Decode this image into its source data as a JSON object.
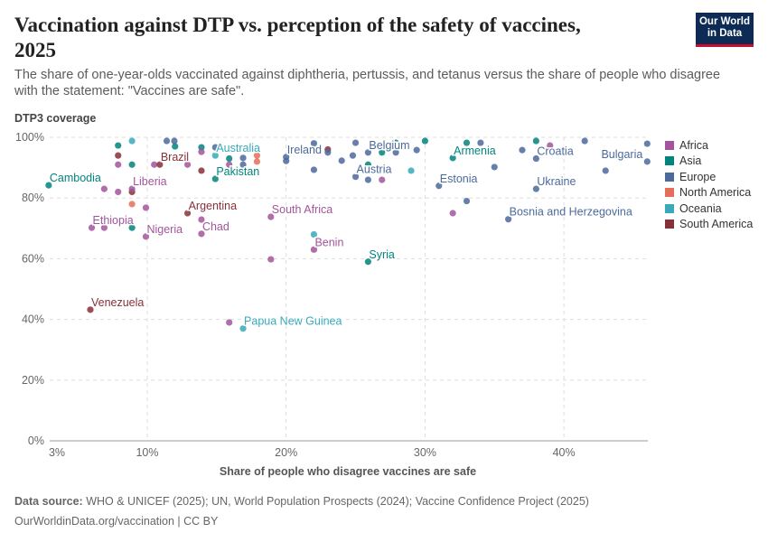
{
  "header": {
    "title": "Vaccination against DTP vs. perception of the safety of vaccines, 2025",
    "subtitle": "The share of one-year-olds vaccinated against diphtheria, pertussis, and tetanus versus the share of people who disagree with the statement: \"Vaccines are safe\".",
    "logo": "Our World in Data"
  },
  "footer": {
    "source_label": "Data source:",
    "source": "WHO & UNICEF (2025); UN, World Population Prospects (2024); Vaccine Confidence Project (2025)",
    "link": "OurWorldinData.org/vaccination | CC BY"
  },
  "chart_data": {
    "type": "scatter",
    "title": "Vaccination against DTP vs. perception of the safety of vaccines, 2025",
    "xlabel": "Share of people who disagree vaccines are safe",
    "ylabel": "DTP3 coverage",
    "xlim": [
      2.5,
      46
    ],
    "ylim": [
      0,
      100
    ],
    "x_scale": "log",
    "x_ticks": [
      "3%",
      "10%",
      "20%",
      "30%",
      "40%"
    ],
    "y_ticks": [
      "0%",
      "20%",
      "40%",
      "60%",
      "80%",
      "100%"
    ],
    "grid": true,
    "legend_position": "right",
    "regions": [
      {
        "name": "Africa",
        "color": "#a2559c"
      },
      {
        "name": "Asia",
        "color": "#00847e"
      },
      {
        "name": "Europe",
        "color": "#4c6a9c"
      },
      {
        "name": "North America",
        "color": "#e56e5a"
      },
      {
        "name": "Oceania",
        "color": "#38aaba"
      },
      {
        "name": "South America",
        "color": "#883039"
      }
    ],
    "points": [
      {
        "x": 2.9,
        "y": 84.2,
        "r": "Asia",
        "label": "Cambodia"
      },
      {
        "x": 6.0,
        "y": 70.2,
        "r": "Africa",
        "label": "Ethiopia"
      },
      {
        "x": 6.9,
        "y": 70.2,
        "r": "Africa"
      },
      {
        "x": 6.9,
        "y": 83,
        "r": "Africa"
      },
      {
        "x": 7.9,
        "y": 82,
        "r": "Africa"
      },
      {
        "x": 8.9,
        "y": 82,
        "r": "South America"
      },
      {
        "x": 8.9,
        "y": 83,
        "r": "Africa",
        "label": "Liberia"
      },
      {
        "x": 8.9,
        "y": 78,
        "r": "North America"
      },
      {
        "x": 8.9,
        "y": 70.2,
        "r": "Asia"
      },
      {
        "x": 9.9,
        "y": 76.8,
        "r": "Africa"
      },
      {
        "x": 9.9,
        "y": 67.3,
        "r": "Africa",
        "label": "Nigeria"
      },
      {
        "x": 5.9,
        "y": 43.2,
        "r": "South America",
        "label": "Venezuela"
      },
      {
        "x": 7.9,
        "y": 97.3,
        "r": "Asia"
      },
      {
        "x": 7.9,
        "y": 94,
        "r": "South America"
      },
      {
        "x": 7.9,
        "y": 91,
        "r": "Africa"
      },
      {
        "x": 8.9,
        "y": 98.8,
        "r": "Oceania"
      },
      {
        "x": 8.9,
        "y": 91,
        "r": "Asia"
      },
      {
        "x": 10.5,
        "y": 91,
        "r": "Africa"
      },
      {
        "x": 10.9,
        "y": 91,
        "r": "South America",
        "label": "Brazil"
      },
      {
        "x": 11.4,
        "y": 98.8,
        "r": "Europe"
      },
      {
        "x": 11.95,
        "y": 98.8,
        "r": "Europe"
      },
      {
        "x": 12,
        "y": 97,
        "r": "Asia"
      },
      {
        "x": 12.9,
        "y": 91,
        "r": "Africa"
      },
      {
        "x": 13.9,
        "y": 96.7,
        "r": "Asia"
      },
      {
        "x": 13.9,
        "y": 95.2,
        "r": "Africa"
      },
      {
        "x": 13.9,
        "y": 89,
        "r": "South America"
      },
      {
        "x": 14.9,
        "y": 96.7,
        "r": "Europe"
      },
      {
        "x": 14.9,
        "y": 94,
        "r": "Oceania",
        "label": "Australia"
      },
      {
        "x": 15.9,
        "y": 93,
        "r": "Asia"
      },
      {
        "x": 15.9,
        "y": 91,
        "r": "Africa"
      },
      {
        "x": 16.9,
        "y": 93.2,
        "r": "Europe"
      },
      {
        "x": 16.9,
        "y": 91,
        "r": "Europe"
      },
      {
        "x": 17.9,
        "y": 94,
        "r": "North America"
      },
      {
        "x": 17.9,
        "y": 92,
        "r": "North America"
      },
      {
        "x": 14.9,
        "y": 86.3,
        "r": "Asia",
        "label": "Pakistan"
      },
      {
        "x": 12.9,
        "y": 75,
        "r": "South America",
        "label": "Argentina"
      },
      {
        "x": 13.9,
        "y": 72.9,
        "r": "Africa"
      },
      {
        "x": 13.9,
        "y": 68.2,
        "r": "Africa",
        "label": "Chad"
      },
      {
        "x": 18.9,
        "y": 73.8,
        "r": "Africa",
        "label": "South Africa"
      },
      {
        "x": 18.9,
        "y": 59.8,
        "r": "Africa"
      },
      {
        "x": 15.9,
        "y": 39,
        "r": "Africa"
      },
      {
        "x": 16.9,
        "y": 37,
        "r": "Oceania",
        "label": "Papua New Guinea"
      },
      {
        "x": 20,
        "y": 93.5,
        "r": "Europe",
        "label": "Ireland"
      },
      {
        "x": 20,
        "y": 92.2,
        "r": "Europe"
      },
      {
        "x": 22,
        "y": 98,
        "r": "Europe"
      },
      {
        "x": 23,
        "y": 96,
        "r": "South America"
      },
      {
        "x": 23,
        "y": 95,
        "r": "Europe"
      },
      {
        "x": 22,
        "y": 89.3,
        "r": "Europe"
      },
      {
        "x": 22,
        "y": 68,
        "r": "Oceania"
      },
      {
        "x": 22,
        "y": 63,
        "r": "Africa",
        "label": "Benin"
      },
      {
        "x": 24,
        "y": 92.3,
        "r": "Europe"
      },
      {
        "x": 24.8,
        "y": 94,
        "r": "Europe"
      },
      {
        "x": 25,
        "y": 98.2,
        "r": "Europe"
      },
      {
        "x": 25.9,
        "y": 95,
        "r": "Europe",
        "label": "Belgium"
      },
      {
        "x": 26.9,
        "y": 95,
        "r": "Asia"
      },
      {
        "x": 27.9,
        "y": 95,
        "r": "Europe"
      },
      {
        "x": 27.9,
        "y": 98.2,
        "r": "Asia"
      },
      {
        "x": 25.9,
        "y": 91,
        "r": "Asia"
      },
      {
        "x": 25,
        "y": 87,
        "r": "Europe",
        "label": "Austria"
      },
      {
        "x": 25.9,
        "y": 86,
        "r": "Europe"
      },
      {
        "x": 26.9,
        "y": 86,
        "r": "Africa"
      },
      {
        "x": 29.4,
        "y": 95.8,
        "r": "Europe"
      },
      {
        "x": 30,
        "y": 98.8,
        "r": "Asia"
      },
      {
        "x": 29,
        "y": 89,
        "r": "Oceania"
      },
      {
        "x": 31,
        "y": 84,
        "r": "Europe",
        "label": "Estonia"
      },
      {
        "x": 32,
        "y": 93.2,
        "r": "Asia",
        "label": "Armenia"
      },
      {
        "x": 33,
        "y": 98.2,
        "r": "Asia"
      },
      {
        "x": 34,
        "y": 98.2,
        "r": "Europe"
      },
      {
        "x": 35,
        "y": 90.2,
        "r": "Europe"
      },
      {
        "x": 33,
        "y": 79,
        "r": "Europe"
      },
      {
        "x": 32,
        "y": 75,
        "r": "Africa"
      },
      {
        "x": 36,
        "y": 73,
        "r": "Europe",
        "label": "Bosnia and Herzegovina"
      },
      {
        "x": 37,
        "y": 95.8,
        "r": "Europe"
      },
      {
        "x": 38,
        "y": 98.8,
        "r": "Asia"
      },
      {
        "x": 39,
        "y": 97.3,
        "r": "Africa"
      },
      {
        "x": 38,
        "y": 93,
        "r": "Europe",
        "label": "Croatia"
      },
      {
        "x": 38,
        "y": 83,
        "r": "Europe",
        "label": "Ukraine"
      },
      {
        "x": 41.5,
        "y": 98.8,
        "r": "Europe"
      },
      {
        "x": 43,
        "y": 89,
        "r": "Europe"
      },
      {
        "x": 46,
        "y": 97.9,
        "r": "Europe"
      },
      {
        "x": 46,
        "y": 92,
        "r": "Europe",
        "label": "Bulgaria"
      },
      {
        "x": 25.9,
        "y": 59,
        "r": "Asia",
        "label": "Syria"
      }
    ]
  }
}
